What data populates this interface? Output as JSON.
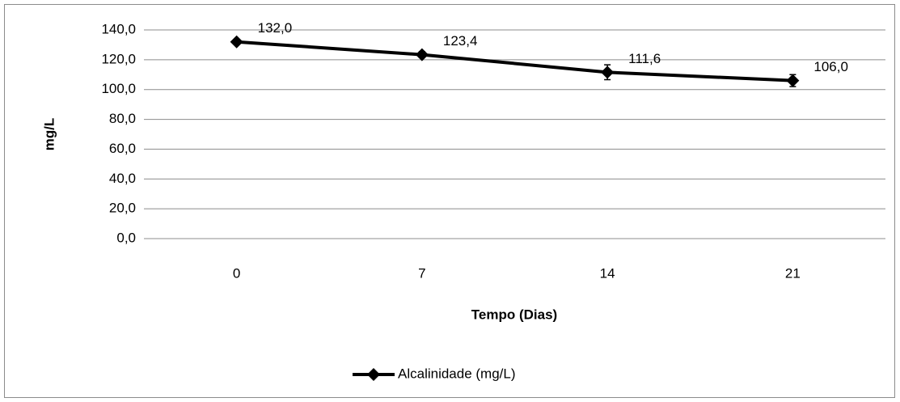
{
  "chart_data": {
    "type": "line",
    "categories": [
      "0",
      "7",
      "14",
      "21"
    ],
    "series": [
      {
        "name": "Alcalinidade (mg/L)",
        "color": "#000000",
        "values": [
          132.0,
          123.4,
          111.6,
          106.0
        ],
        "value_labels": [
          "132,0",
          "123,4",
          "111,6",
          "106,0"
        ],
        "errors": [
          1.5,
          2,
          5,
          4
        ]
      }
    ],
    "ylim": [
      0,
      140
    ],
    "yticks": [
      {
        "value": 0,
        "label": "0,0"
      },
      {
        "value": 20,
        "label": "20,0"
      },
      {
        "value": 40,
        "label": "40,0"
      },
      {
        "value": 60,
        "label": "60,0"
      },
      {
        "value": 80,
        "label": "80,0"
      },
      {
        "value": 100,
        "label": "100,0"
      },
      {
        "value": 120,
        "label": "120,0"
      },
      {
        "value": 140,
        "label": "140,0"
      }
    ],
    "y_label": "mg/L",
    "x_label": "Tempo (Dias)",
    "grid": true,
    "legend": "bottom"
  }
}
